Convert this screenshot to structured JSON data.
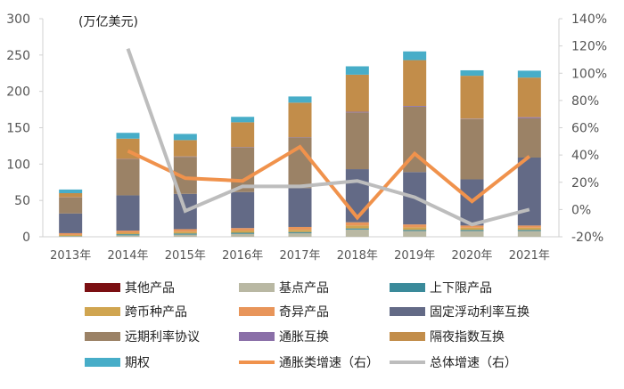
{
  "chart_data": {
    "type": "bar",
    "stacked": true,
    "unit_label": "(万亿美元)",
    "categories": [
      "2013年",
      "2014年",
      "2015年",
      "2016年",
      "2017年",
      "2018年",
      "2019年",
      "2020年",
      "2021年"
    ],
    "ylim": [
      0,
      300
    ],
    "yticks": [
      0,
      50,
      100,
      150,
      200,
      250,
      300
    ],
    "y2lim": [
      -20,
      140
    ],
    "y2ticks": [
      "-20%",
      "0%",
      "20%",
      "40%",
      "60%",
      "80%",
      "100%",
      "120%",
      "140%"
    ],
    "grid": false,
    "legend_position": "bottom",
    "series": [
      {
        "name": "其他产品",
        "color": "#7b0f12",
        "axis": "left",
        "type": "bar",
        "values": [
          0,
          0,
          0,
          0,
          0,
          0,
          0,
          0,
          0
        ]
      },
      {
        "name": "基点产品",
        "color": "#b9b8a3",
        "axis": "left",
        "type": "bar",
        "values": [
          0.5,
          2,
          3,
          4,
          5,
          10,
          8,
          8,
          8
        ]
      },
      {
        "name": "上下限产品",
        "color": "#3a8a9a",
        "axis": "left",
        "type": "bar",
        "values": [
          0.5,
          1.5,
          1.5,
          1.5,
          1.5,
          1.5,
          1.5,
          1.5,
          1.5
        ]
      },
      {
        "name": "跨币种产品",
        "color": "#d0a550",
        "axis": "left",
        "type": "bar",
        "values": [
          1.5,
          2,
          2.5,
          3,
          3,
          4,
          3.5,
          3,
          3
        ]
      },
      {
        "name": "奇异产品",
        "color": "#e8955a",
        "axis": "left",
        "type": "bar",
        "values": [
          2.5,
          3,
          3.5,
          3.5,
          4,
          4.5,
          4,
          3,
          3
        ]
      },
      {
        "name": "固定浮动利率互换",
        "color": "#636a86",
        "axis": "left",
        "type": "bar",
        "values": [
          27,
          48.5,
          48.5,
          49.5,
          53.5,
          73,
          72,
          63.5,
          93.5
        ]
      },
      {
        "name": "远期利率协议",
        "color": "#9b8266",
        "axis": "left",
        "type": "bar",
        "values": [
          22,
          49.5,
          51,
          61.5,
          69.5,
          78,
          90,
          83,
          54
        ]
      },
      {
        "name": "通胀互换",
        "color": "#8a6fa8",
        "axis": "left",
        "type": "bar",
        "values": [
          0.3,
          0.5,
          0.5,
          0.5,
          0.5,
          1,
          1,
          0.5,
          1.5
        ]
      },
      {
        "name": "隔夜指数互换",
        "color": "#c28d4a",
        "axis": "left",
        "type": "bar",
        "values": [
          5.7,
          28,
          22.5,
          34,
          47.5,
          51,
          63,
          59,
          54.5
        ]
      },
      {
        "name": "期权",
        "color": "#47adc8",
        "axis": "left",
        "type": "bar",
        "values": [
          5,
          8,
          8.5,
          7.5,
          8.5,
          11.5,
          12,
          7.5,
          9.5
        ]
      },
      {
        "name": "通胀类增速（右）",
        "color": "#f0924c",
        "axis": "right",
        "type": "line",
        "values": [
          null,
          43,
          23,
          21,
          46,
          -6,
          41,
          6,
          39
        ]
      },
      {
        "name": "总体增速（右）",
        "color": "#bdbdbd",
        "axis": "right",
        "type": "line",
        "values": [
          null,
          118,
          -1,
          17,
          17,
          21,
          9,
          -11,
          0
        ]
      }
    ]
  }
}
